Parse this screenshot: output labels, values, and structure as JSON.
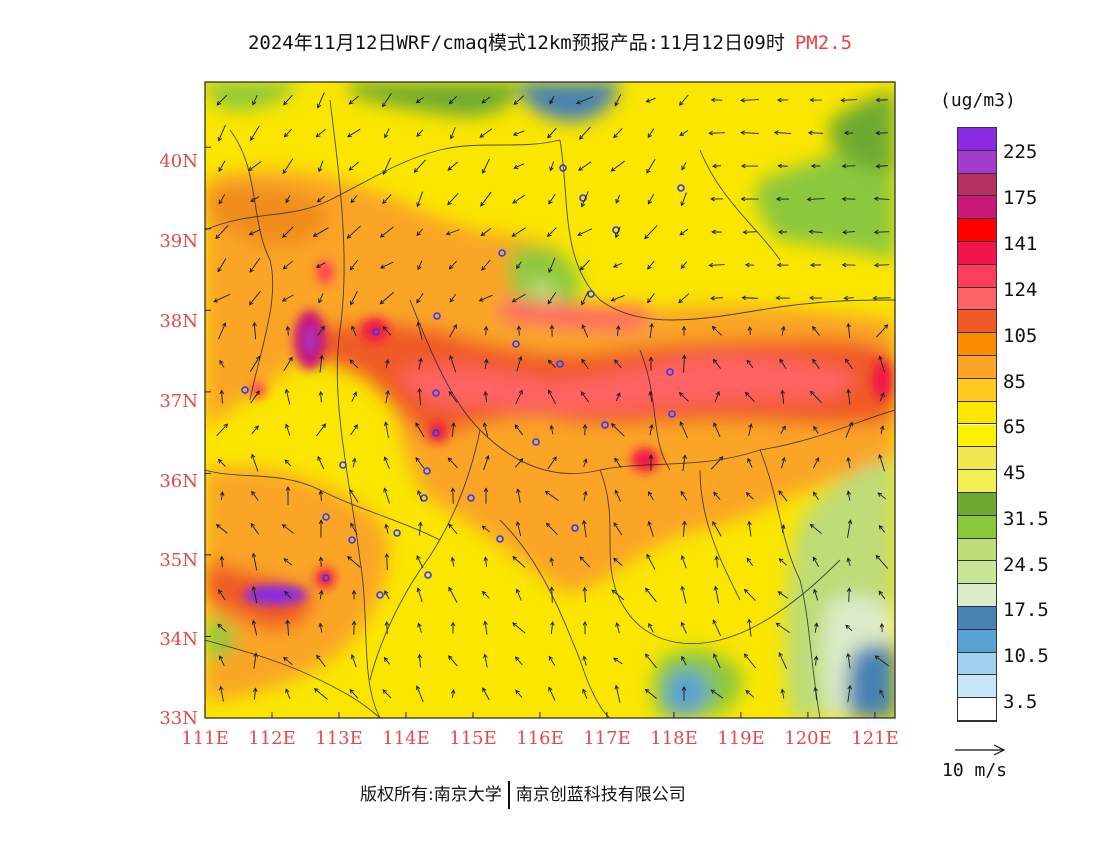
{
  "title": {
    "main": "2024年11月12日WRF/cmaq模式12km预报产品:11月12日09时",
    "variable": "PM2.5"
  },
  "map": {
    "lat_labels": [
      "40N",
      "39N",
      "38N",
      "37N",
      "36N",
      "35N",
      "34N",
      "33N"
    ],
    "lon_labels": [
      "111E",
      "112E",
      "113E",
      "114E",
      "115E",
      "116E",
      "117E",
      "118E",
      "119E",
      "120E",
      "121E"
    ],
    "lon_range": [
      111,
      121.3
    ],
    "lat_range": [
      33,
      40.8
    ]
  },
  "colorbar": {
    "unit": "(ug/m3)",
    "labels": [
      "225",
      "175",
      "141",
      "124",
      "105",
      "85",
      "65",
      "45",
      "31.5",
      "24.5",
      "17.5",
      "10.5",
      "3.5"
    ],
    "colors": [
      "#8a2be2",
      "#a23acb",
      "#b5305e",
      "#c8197a",
      "#ff0000",
      "#f0144a",
      "#ff3c5a",
      "#ff6464",
      "#f05a28",
      "#fa8c00",
      "#faa528",
      "#ffc81e",
      "#fae600",
      "#fff000",
      "#f0e650",
      "#f0f050",
      "#6eaa32",
      "#8cc83c",
      "#bedc78",
      "#c8e696",
      "#dcebc8",
      "#4682b4",
      "#5aa0d2",
      "#a0d2f0",
      "#c8e6fa",
      "#ffffff"
    ]
  },
  "vector_reference": {
    "label": "10 m/s"
  },
  "footer": {
    "left": "版权所有:南京大学",
    "right": "南京创蓝科技有限公司"
  }
}
